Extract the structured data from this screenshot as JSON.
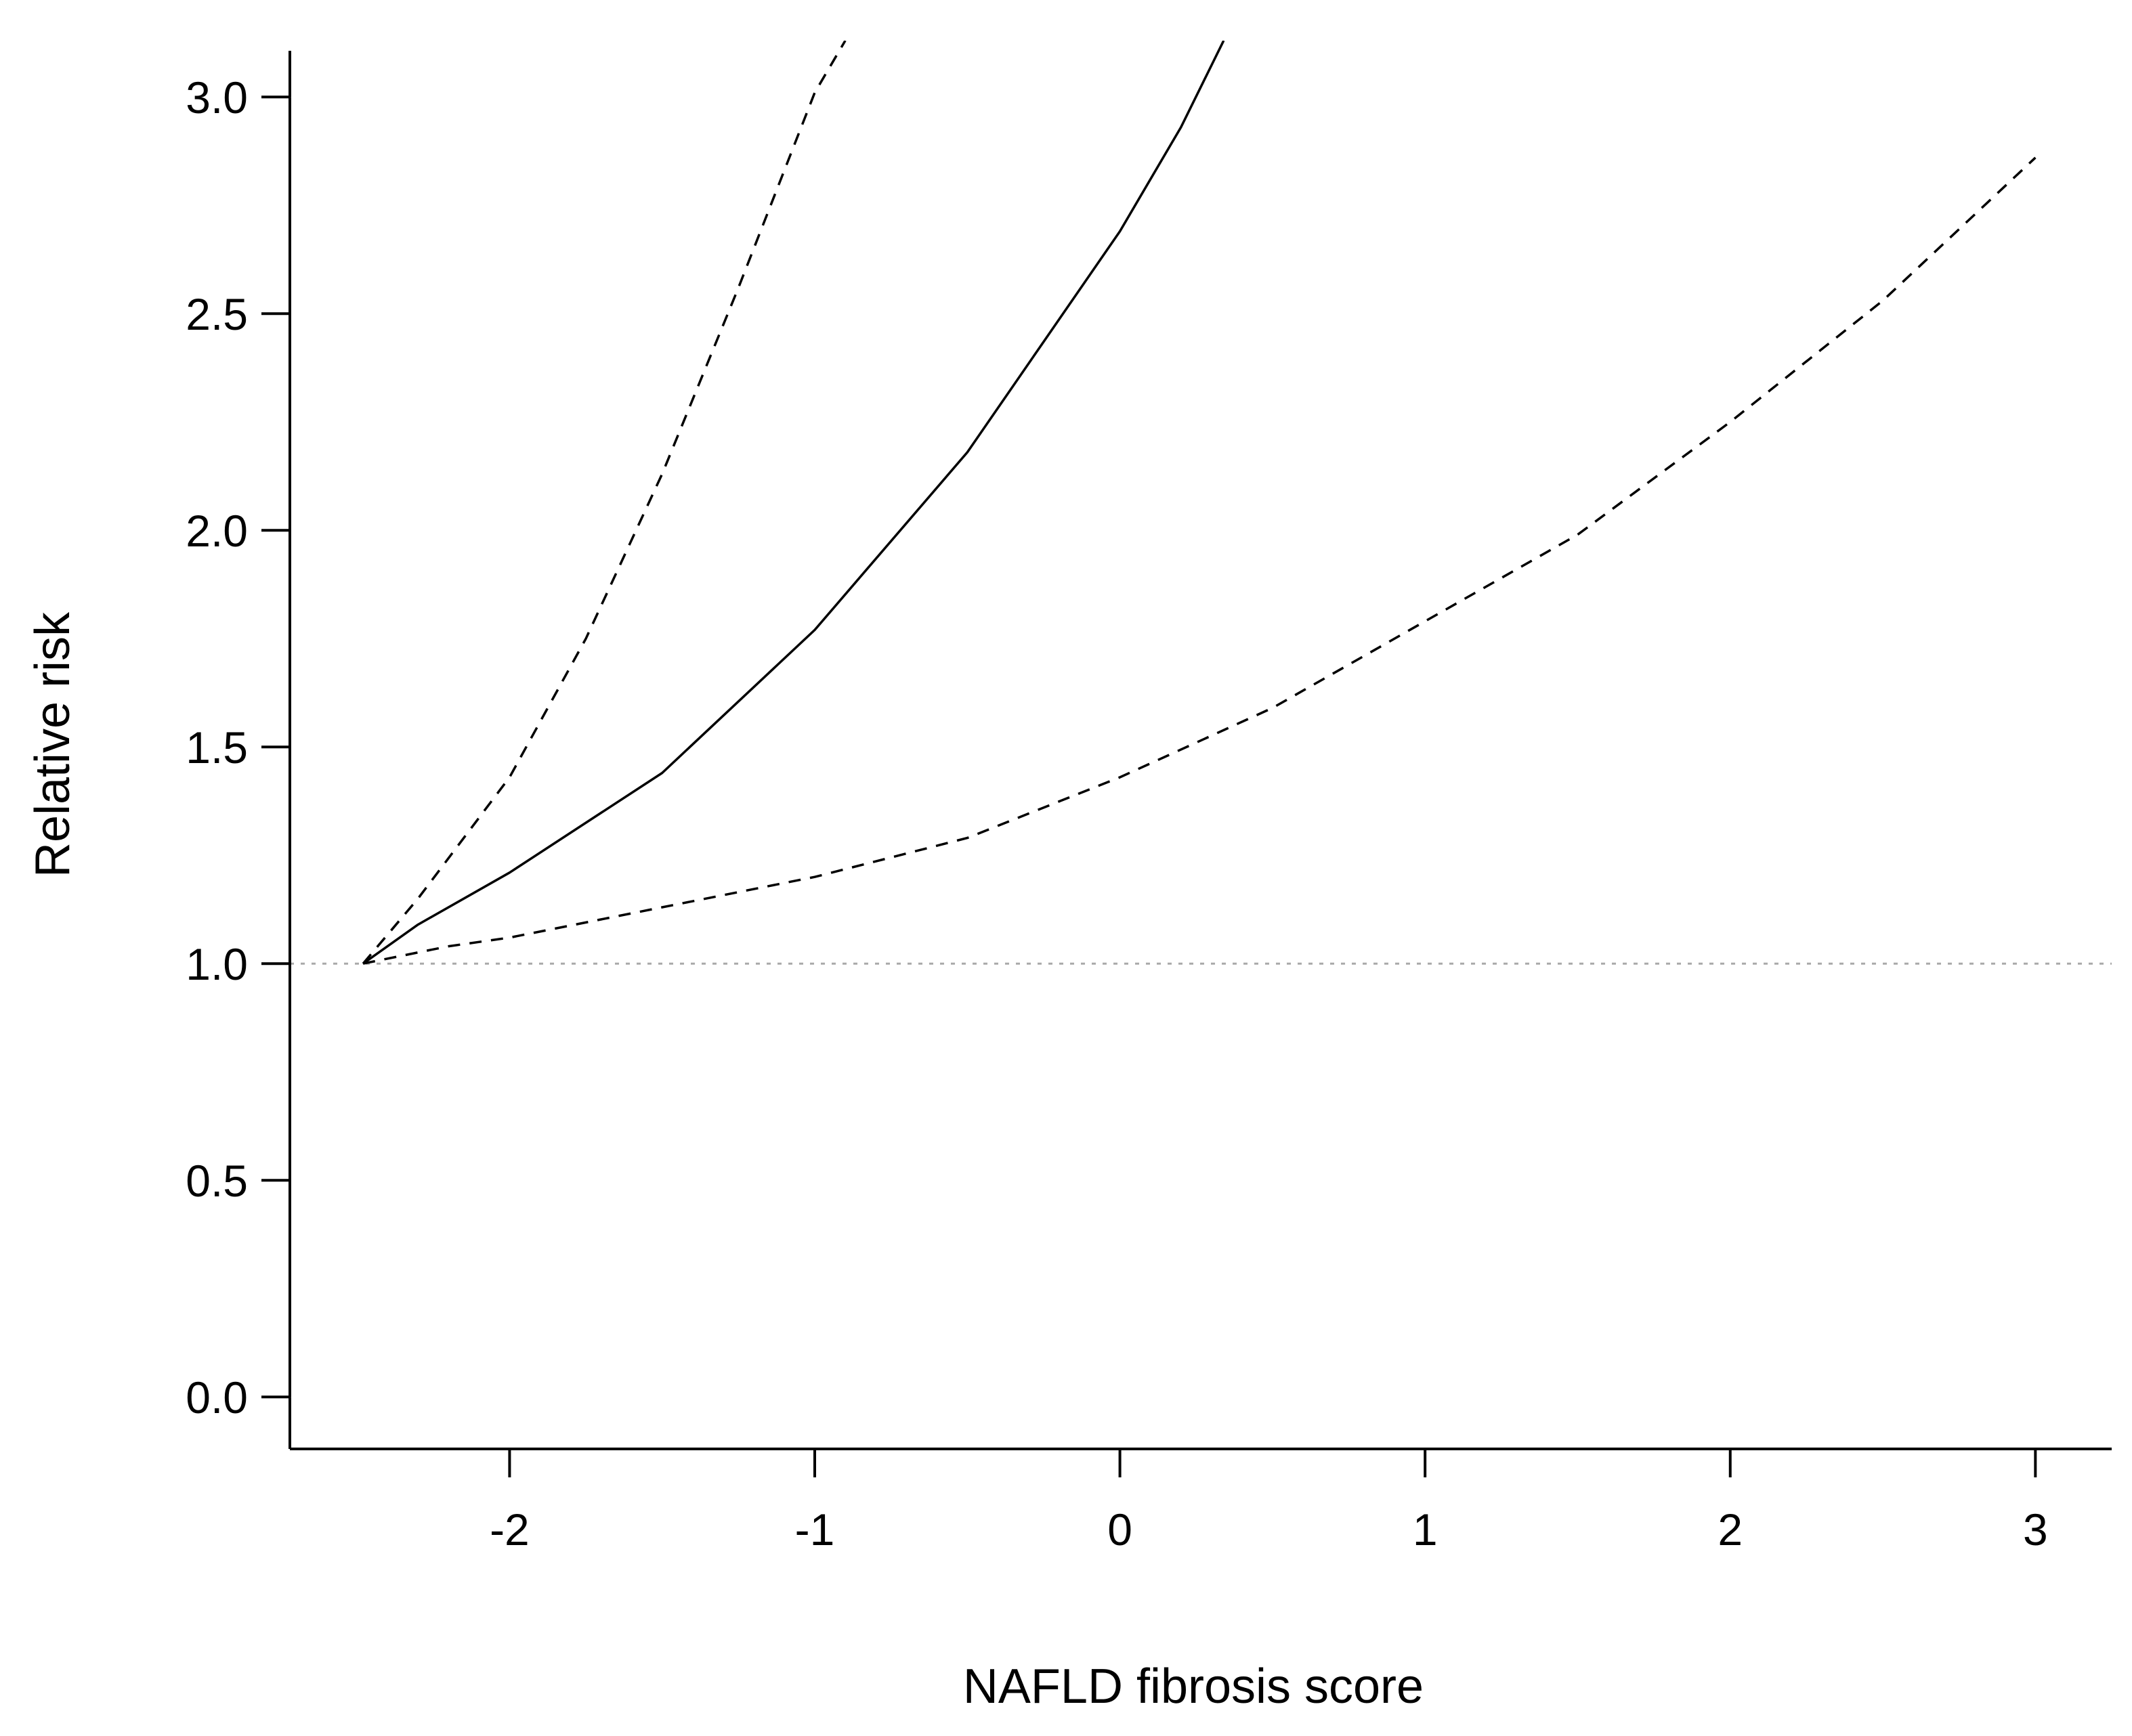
{
  "chart_data": {
    "type": "line",
    "title": "",
    "xlabel": "NAFLD fibrosis score",
    "ylabel": "Relative risk",
    "xlim": [
      -2.72,
      3.25
    ],
    "ylim": [
      -0.12,
      3.13
    ],
    "xticks": [
      -2,
      -1,
      0,
      1,
      2,
      3
    ],
    "yticks": [
      0.0,
      0.5,
      1.0,
      1.5,
      2.0,
      2.5,
      3.0
    ],
    "xtick_labels": [
      "-2",
      "-1",
      "0",
      "1",
      "2",
      "3"
    ],
    "ytick_labels": [
      "0.0",
      "0.5",
      "1.0",
      "1.5",
      "2.0",
      "2.5",
      "3.0"
    ],
    "grid": false,
    "reference_line": {
      "y": 1.0,
      "style": "dotted",
      "color": "#aaaaaa"
    },
    "series": [
      {
        "role": "estimate",
        "style": "solid",
        "color": "#000000",
        "points": [
          [
            -2.48,
            1.0
          ],
          [
            -2.3,
            1.09
          ],
          [
            -2.0,
            1.21
          ],
          [
            -1.5,
            1.44
          ],
          [
            -1.0,
            1.77
          ],
          [
            -0.5,
            2.18
          ],
          [
            0.0,
            2.69
          ],
          [
            0.2,
            2.93
          ],
          [
            0.34,
            3.13
          ]
        ]
      },
      {
        "role": "upper-bound",
        "style": "dashed",
        "color": "#000000",
        "points": [
          [
            -2.48,
            1.0
          ],
          [
            -2.3,
            1.15
          ],
          [
            -2.0,
            1.43
          ],
          [
            -1.75,
            1.75
          ],
          [
            -1.5,
            2.13
          ],
          [
            -1.25,
            2.56
          ],
          [
            -1.0,
            3.01
          ],
          [
            -0.9,
            3.13
          ]
        ]
      },
      {
        "role": "lower-bound",
        "style": "dashed",
        "color": "#000000",
        "points": [
          [
            -2.48,
            1.0
          ],
          [
            -2.2,
            1.04
          ],
          [
            -2.0,
            1.06
          ],
          [
            -1.5,
            1.13
          ],
          [
            -1.0,
            1.2
          ],
          [
            -0.5,
            1.29
          ],
          [
            0.0,
            1.43
          ],
          [
            0.5,
            1.59
          ],
          [
            1.0,
            1.79
          ],
          [
            1.5,
            1.99
          ],
          [
            2.0,
            2.25
          ],
          [
            2.5,
            2.53
          ],
          [
            3.0,
            2.86
          ]
        ]
      }
    ]
  }
}
